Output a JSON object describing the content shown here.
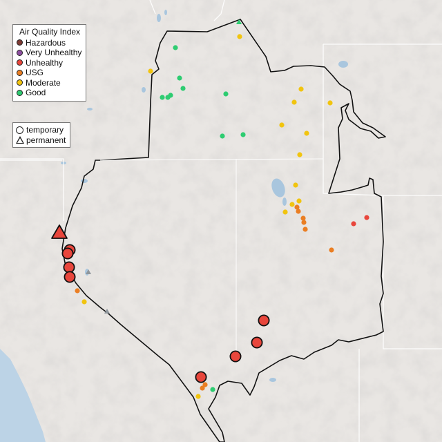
{
  "legend": {
    "title": "Air Quality Index",
    "categories": [
      {
        "label": "Hazardous",
        "color": "#7e3b34"
      },
      {
        "label": "Very Unhealthy",
        "color": "#8e4ea0"
      },
      {
        "label": "Unhealthy",
        "color": "#e8463c"
      },
      {
        "label": "USG",
        "color": "#ea7e23"
      },
      {
        "label": "Moderate",
        "color": "#f1c40f"
      },
      {
        "label": "Good",
        "color": "#2ecc71"
      }
    ],
    "types": [
      {
        "label": "temporary",
        "shape": "circle-icon"
      },
      {
        "label": "permanent",
        "shape": "triangle-icon"
      }
    ]
  },
  "colors": {
    "land": "#e9e6e3",
    "ocean": "#bcd3e6",
    "lake": "#a9c6de",
    "boundary": "#111111",
    "state_border": "#ffffff"
  }
}
